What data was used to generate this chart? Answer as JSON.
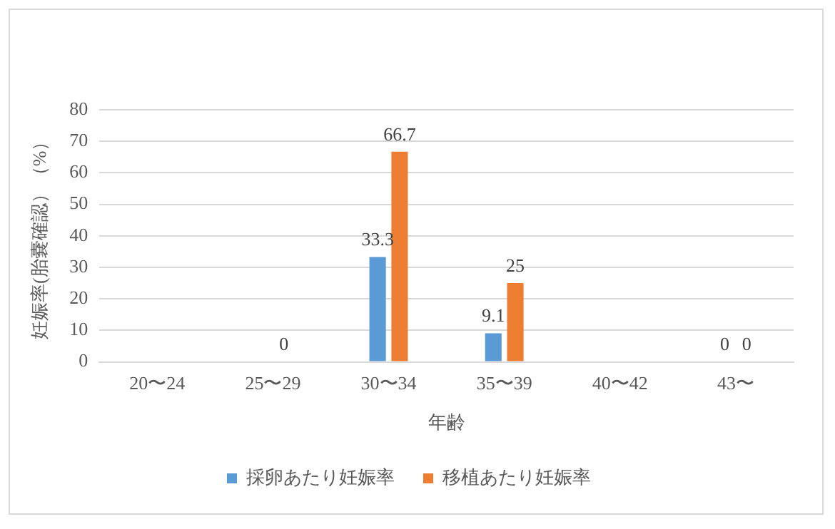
{
  "chart_data": {
    "type": "bar",
    "xlabel": "年齢",
    "ylabel": "妊娠率(胎嚢確認）（%）",
    "categories": [
      "20〜24",
      "25〜29",
      "30〜34",
      "35〜39",
      "40〜42",
      "43〜"
    ],
    "series": [
      {
        "name": "採卵あたり妊娠率",
        "color": "#5b9bd5",
        "values": [
          null,
          null,
          33.3,
          9.1,
          null,
          0
        ]
      },
      {
        "name": "移植あたり妊娠率",
        "color": "#ed7d31",
        "values": [
          null,
          0,
          66.7,
          25,
          null,
          0
        ]
      }
    ],
    "ylim": [
      0,
      80
    ],
    "yticks": [
      0,
      10,
      20,
      30,
      40,
      50,
      60,
      70,
      80
    ],
    "grid": "y",
    "legend": "bottom",
    "data_labels": true
  }
}
